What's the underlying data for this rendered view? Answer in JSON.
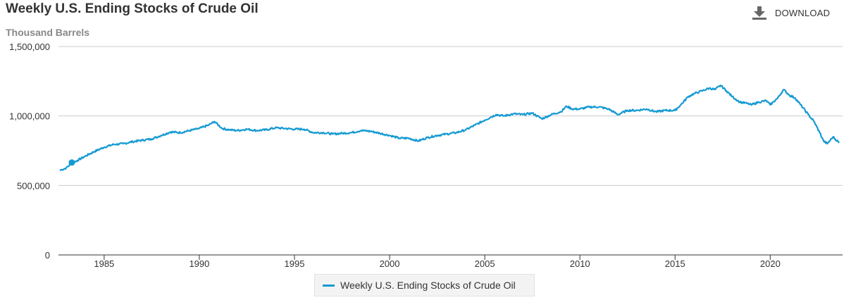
{
  "header": {
    "title": "Weekly U.S. Ending Stocks of Crude Oil",
    "download_label": "DOWNLOAD",
    "download_icon": "download-icon"
  },
  "colors": {
    "series": "#159ad3",
    "grid": "#cccccc",
    "axis": "#333333",
    "text": "#333333",
    "muted": "#888888"
  },
  "chart_data": {
    "type": "line",
    "title": "Weekly U.S. Ending Stocks of Crude Oil",
    "ylabel": "Thousand Barrels",
    "xlabel": "",
    "ylim": [
      0,
      1500000
    ],
    "xlim": [
      1982.6,
      2023.8
    ],
    "yticks": [
      0,
      500000,
      1000000,
      1500000
    ],
    "yticklabels": [
      "0",
      "500,000",
      "1,000,000",
      "1,500,000"
    ],
    "xticks": [
      1985,
      1990,
      1995,
      2000,
      2005,
      2010,
      2015,
      2020
    ],
    "xticklabels": [
      "1985",
      "1990",
      "1995",
      "2000",
      "2005",
      "2010",
      "2015",
      "2020"
    ],
    "grid": true,
    "legend": "bottom-center",
    "marker": {
      "x": 1983.3,
      "y": 665000
    },
    "series": [
      {
        "name": "Weekly U.S. Ending Stocks of Crude Oil",
        "x": [
          1982.7,
          1983.0,
          1983.3,
          1983.6,
          1984.0,
          1984.5,
          1985.0,
          1985.5,
          1986.0,
          1986.5,
          1987.0,
          1987.5,
          1988.0,
          1988.5,
          1989.0,
          1989.5,
          1990.0,
          1990.5,
          1990.8,
          1991.2,
          1991.6,
          1992.0,
          1992.5,
          1993.0,
          1993.5,
          1994.0,
          1994.5,
          1995.0,
          1995.5,
          1996.0,
          1996.5,
          1997.0,
          1997.5,
          1998.0,
          1998.5,
          1999.0,
          1999.5,
          2000.0,
          2000.5,
          2001.0,
          2001.5,
          2002.0,
          2002.5,
          2003.0,
          2003.5,
          2004.0,
          2004.5,
          2005.0,
          2005.3,
          2005.6,
          2006.0,
          2006.5,
          2007.0,
          2007.5,
          2008.0,
          2008.5,
          2009.0,
          2009.3,
          2009.6,
          2010.0,
          2010.5,
          2011.0,
          2011.5,
          2012.0,
          2012.5,
          2013.0,
          2013.5,
          2014.0,
          2014.5,
          2015.0,
          2015.3,
          2015.7,
          2016.0,
          2016.4,
          2016.8,
          2017.1,
          2017.4,
          2017.7,
          2018.0,
          2018.4,
          2018.8,
          2019.0,
          2019.4,
          2019.8,
          2020.0,
          2020.4,
          2020.7,
          2021.0,
          2021.3,
          2021.6,
          2022.0,
          2022.3,
          2022.6,
          2022.8,
          2023.0,
          2023.3,
          2023.6
        ],
        "values": [
          610000,
          625000,
          660000,
          680000,
          710000,
          745000,
          775000,
          795000,
          800000,
          815000,
          825000,
          835000,
          860000,
          885000,
          880000,
          895000,
          910000,
          935000,
          960000,
          910000,
          900000,
          895000,
          905000,
          895000,
          900000,
          915000,
          910000,
          905000,
          905000,
          880000,
          880000,
          870000,
          875000,
          880000,
          895000,
          890000,
          875000,
          860000,
          840000,
          840000,
          820000,
          845000,
          860000,
          870000,
          880000,
          900000,
          935000,
          970000,
          990000,
          1010000,
          1000000,
          1015000,
          1010000,
          1020000,
          980000,
          1010000,
          1030000,
          1070000,
          1050000,
          1050000,
          1065000,
          1065000,
          1050000,
          1010000,
          1040000,
          1040000,
          1050000,
          1030000,
          1040000,
          1040000,
          1080000,
          1140000,
          1160000,
          1180000,
          1200000,
          1190000,
          1220000,
          1180000,
          1140000,
          1100000,
          1090000,
          1080000,
          1100000,
          1110000,
          1080000,
          1130000,
          1190000,
          1150000,
          1130000,
          1080000,
          1010000,
          960000,
          880000,
          820000,
          800000,
          850000,
          810000
        ]
      }
    ]
  }
}
